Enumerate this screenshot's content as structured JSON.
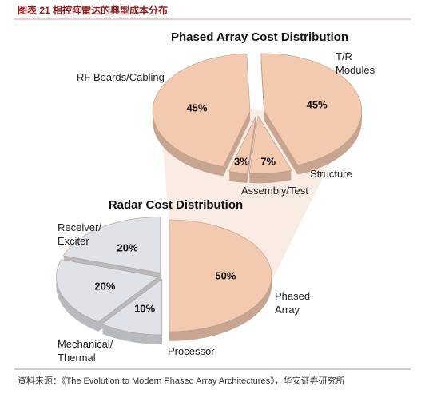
{
  "header": "图表 21 相控阵雷达的典型成本分布",
  "source": "资料来源：《The Evolution to Modern Phased Array Architectures》，华安证券研究所",
  "chart_data": [
    {
      "type": "pie",
      "title": "Phased Array Cost Distribution",
      "categories": [
        "T/R\nModules",
        "Structure",
        "Assembly/Test",
        "RF Boards/Cabling"
      ],
      "values": [
        45,
        7,
        3,
        45
      ],
      "value_labels": [
        "45%",
        "7%",
        "3%",
        "45%"
      ],
      "colors": [
        "#f3c9af",
        "#f3c9af",
        "#f3c9af",
        "#f3c9af"
      ]
    },
    {
      "type": "pie",
      "title": "Radar Cost Distribution",
      "categories": [
        "Phased\nArray",
        "Processor",
        "Mechanical/\nThermal",
        "Receiver/\nExciter"
      ],
      "values": [
        50,
        10,
        20,
        20
      ],
      "value_labels": [
        "50%",
        "10%",
        "20%",
        "20%"
      ],
      "colors": [
        "#f3c9af",
        "#dfe3e8",
        "#dfe3e8",
        "#dfe3e8"
      ]
    }
  ]
}
